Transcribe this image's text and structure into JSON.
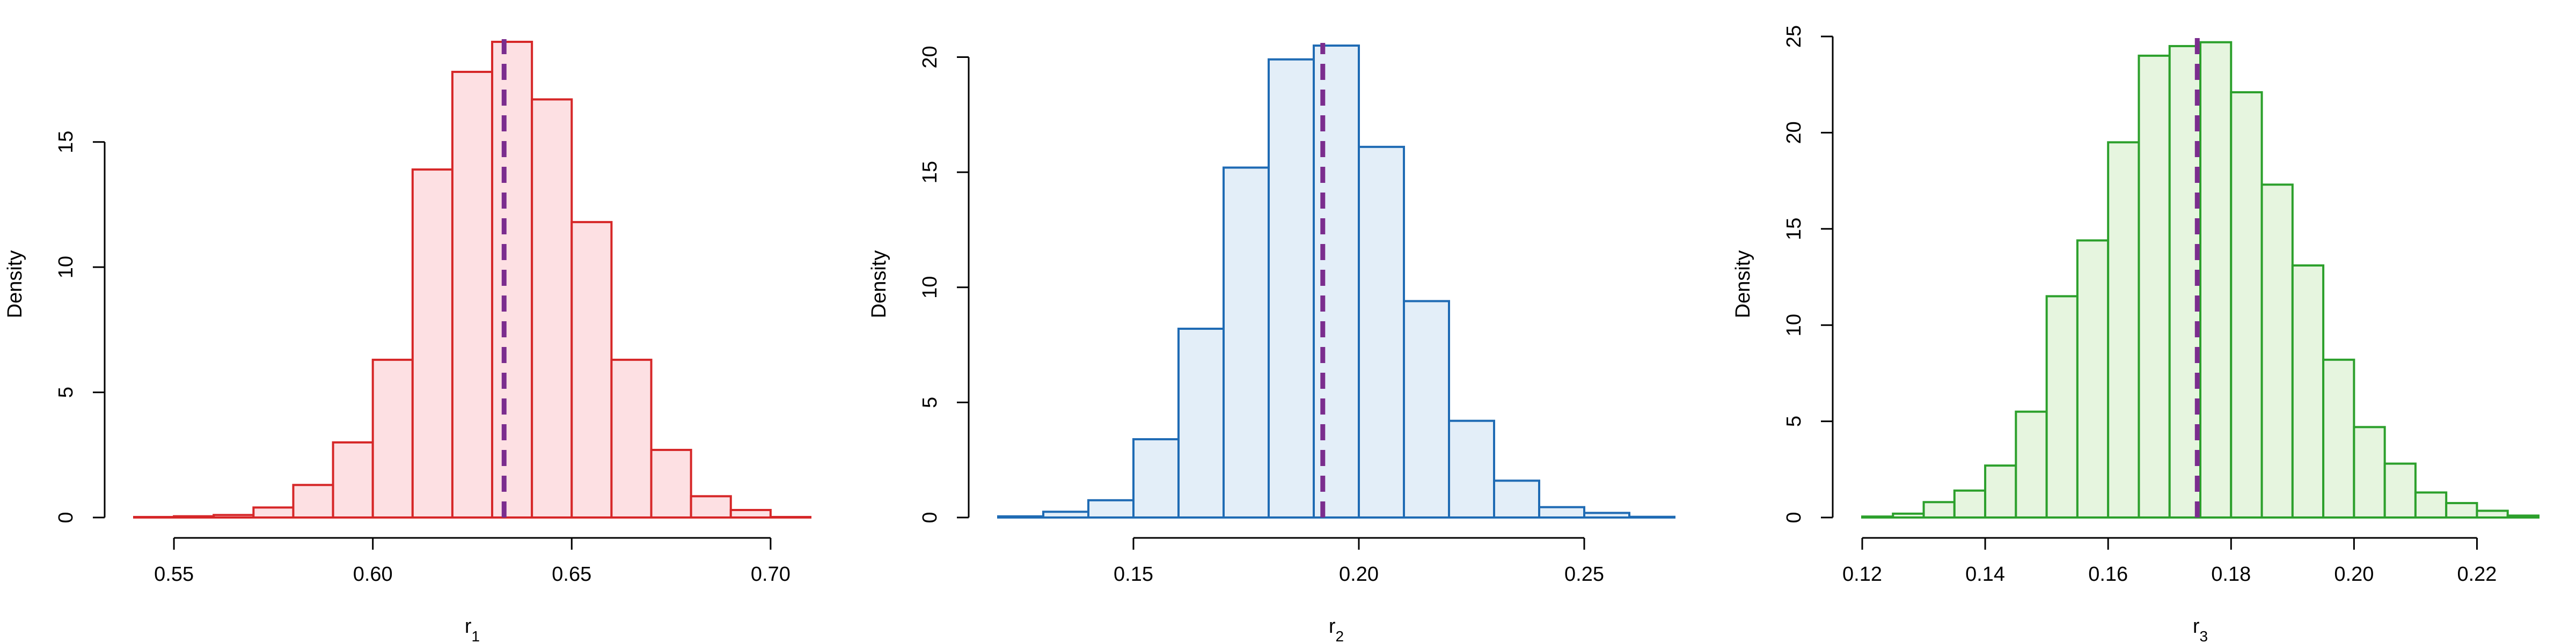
{
  "chart_data": [
    {
      "type": "histogram",
      "ylabel": "Density",
      "xlabel_main": "r",
      "xlabel_sub": "1",
      "xlim": [
        0.54,
        0.71
      ],
      "ylim": [
        0,
        19
      ],
      "xticks": [
        0.55,
        0.6,
        0.65,
        0.7
      ],
      "xtick_labels": [
        "0.55",
        "0.60",
        "0.65",
        "0.70"
      ],
      "yticks": [
        0,
        5,
        10,
        15
      ],
      "ytick_labels": [
        "0",
        "5",
        "10",
        "15"
      ],
      "bin_width": 0.01,
      "bins": [
        {
          "x0": 0.54,
          "y": 0.02
        },
        {
          "x0": 0.55,
          "y": 0.05
        },
        {
          "x0": 0.56,
          "y": 0.1
        },
        {
          "x0": 0.57,
          "y": 0.4
        },
        {
          "x0": 0.58,
          "y": 1.3
        },
        {
          "x0": 0.59,
          "y": 3.0
        },
        {
          "x0": 0.6,
          "y": 6.3
        },
        {
          "x0": 0.61,
          "y": 13.9
        },
        {
          "x0": 0.62,
          "y": 17.8
        },
        {
          "x0": 0.63,
          "y": 19.0
        },
        {
          "x0": 0.64,
          "y": 16.7
        },
        {
          "x0": 0.65,
          "y": 11.8
        },
        {
          "x0": 0.66,
          "y": 6.3
        },
        {
          "x0": 0.67,
          "y": 2.7
        },
        {
          "x0": 0.68,
          "y": 0.85
        },
        {
          "x0": 0.69,
          "y": 0.3
        },
        {
          "x0": 0.7,
          "y": 0.02
        }
      ],
      "vline": 0.633,
      "stroke_color": "#d62728",
      "fill_color": "#fde0e3",
      "vline_color": "#7b2d8e"
    },
    {
      "type": "histogram",
      "ylabel": "Density",
      "xlabel_main": "r",
      "xlabel_sub": "2",
      "xlim": [
        0.12,
        0.27
      ],
      "ylim": [
        0,
        20.5
      ],
      "xticks": [
        0.15,
        0.2,
        0.25
      ],
      "xtick_labels": [
        "0.15",
        "0.20",
        "0.25"
      ],
      "yticks": [
        0,
        5,
        10,
        15,
        20
      ],
      "ytick_labels": [
        "0",
        "5",
        "10",
        "15",
        "20"
      ],
      "bin_width": 0.01,
      "bins": [
        {
          "x0": 0.12,
          "y": 0.05
        },
        {
          "x0": 0.13,
          "y": 0.25
        },
        {
          "x0": 0.14,
          "y": 0.75
        },
        {
          "x0": 0.15,
          "y": 3.4
        },
        {
          "x0": 0.16,
          "y": 8.2
        },
        {
          "x0": 0.17,
          "y": 15.2
        },
        {
          "x0": 0.18,
          "y": 19.9
        },
        {
          "x0": 0.19,
          "y": 20.5
        },
        {
          "x0": 0.2,
          "y": 16.1
        },
        {
          "x0": 0.21,
          "y": 9.4
        },
        {
          "x0": 0.22,
          "y": 4.2
        },
        {
          "x0": 0.23,
          "y": 1.6
        },
        {
          "x0": 0.24,
          "y": 0.45
        },
        {
          "x0": 0.25,
          "y": 0.2
        },
        {
          "x0": 0.26,
          "y": 0.03
        }
      ],
      "vline": 0.192,
      "stroke_color": "#1f6bb4",
      "fill_color": "#e3eef8",
      "vline_color": "#7b2d8e"
    },
    {
      "type": "histogram",
      "ylabel": "Density",
      "xlabel_main": "r",
      "xlabel_sub": "3",
      "xlim": [
        0.12,
        0.23
      ],
      "ylim": [
        0,
        25
      ],
      "xticks": [
        0.12,
        0.14,
        0.16,
        0.18,
        0.2,
        0.22
      ],
      "xtick_labels": [
        "0.12",
        "0.14",
        "0.16",
        "0.18",
        "0.20",
        "0.22"
      ],
      "yticks": [
        0,
        5,
        10,
        15,
        20,
        25
      ],
      "ytick_labels": [
        "0",
        "5",
        "10",
        "15",
        "20",
        "25"
      ],
      "bin_width": 0.005,
      "bins": [
        {
          "x0": 0.12,
          "y": 0.05
        },
        {
          "x0": 0.125,
          "y": 0.2
        },
        {
          "x0": 0.13,
          "y": 0.8
        },
        {
          "x0": 0.135,
          "y": 1.4
        },
        {
          "x0": 0.14,
          "y": 2.7
        },
        {
          "x0": 0.145,
          "y": 5.5
        },
        {
          "x0": 0.15,
          "y": 11.5
        },
        {
          "x0": 0.155,
          "y": 14.4
        },
        {
          "x0": 0.16,
          "y": 19.5
        },
        {
          "x0": 0.165,
          "y": 24.0
        },
        {
          "x0": 0.17,
          "y": 24.5
        },
        {
          "x0": 0.175,
          "y": 24.7
        },
        {
          "x0": 0.18,
          "y": 22.1
        },
        {
          "x0": 0.185,
          "y": 17.3
        },
        {
          "x0": 0.19,
          "y": 13.1
        },
        {
          "x0": 0.195,
          "y": 8.2
        },
        {
          "x0": 0.2,
          "y": 4.7
        },
        {
          "x0": 0.205,
          "y": 2.8
        },
        {
          "x0": 0.21,
          "y": 1.3
        },
        {
          "x0": 0.215,
          "y": 0.75
        },
        {
          "x0": 0.22,
          "y": 0.35
        },
        {
          "x0": 0.225,
          "y": 0.1
        }
      ],
      "vline": 0.1745,
      "stroke_color": "#2ca02c",
      "fill_color": "#e6f5df",
      "vline_color": "#7b2d8e"
    }
  ]
}
